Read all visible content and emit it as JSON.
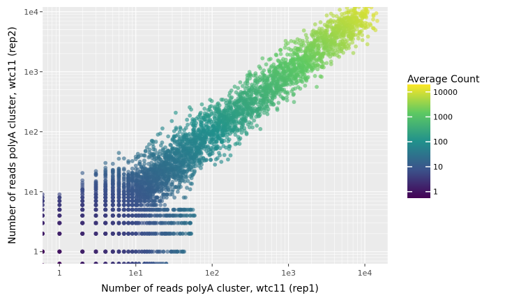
{
  "chart_data": {
    "type": "scatter",
    "xlabel": "Number of reads polyA cluster, wtc11 (rep1)",
    "ylabel": "Number of reads polyA cluster, wtc11 (rep2)",
    "x_scale": "log10",
    "y_scale": "log10",
    "xlim": [
      0.6,
      20000
    ],
    "ylim": [
      0.63,
      12000
    ],
    "x_ticks": [
      {
        "value": 1,
        "label": "1"
      },
      {
        "value": 10,
        "label": "1e1"
      },
      {
        "value": 100,
        "label": "1e2"
      },
      {
        "value": 1000,
        "label": "1e3"
      },
      {
        "value": 10000,
        "label": "1e4"
      }
    ],
    "y_ticks": [
      {
        "value": 1,
        "label": "1"
      },
      {
        "value": 10,
        "label": "1e1"
      },
      {
        "value": 100,
        "label": "1e2"
      },
      {
        "value": 1000,
        "label": "1e3"
      },
      {
        "value": 10000,
        "label": "1e4"
      }
    ],
    "grid": true,
    "color_by": "average count (viridis, log scale)",
    "legend": {
      "title": "Average Count",
      "placement": "right",
      "labels": [
        {
          "value": 1,
          "label": "1"
        },
        {
          "value": 10,
          "label": "10"
        },
        {
          "value": 100,
          "label": "100"
        },
        {
          "value": 1000,
          "label": "1000"
        },
        {
          "value": 10000,
          "label": "10000"
        }
      ],
      "range": [
        0.55,
        20000
      ]
    },
    "points_description_sample": [
      [
        1,
        1
      ],
      [
        2,
        1
      ],
      [
        5,
        2
      ],
      [
        10,
        10
      ],
      [
        30,
        30
      ],
      [
        100,
        100
      ],
      [
        300,
        300
      ],
      [
        1000,
        1000
      ],
      [
        3000,
        3500
      ],
      [
        9000,
        7000
      ],
      [
        13000,
        8500
      ],
      [
        20,
        2
      ],
      [
        10,
        3
      ],
      [
        2,
        8
      ],
      [
        2,
        15
      ]
    ]
  },
  "colors": {
    "panel_bg": "#ebebeb",
    "grid_major": "#ffffff",
    "viridis_stops": [
      "#440154",
      "#3b528b",
      "#21918c",
      "#5ec962",
      "#fde725"
    ]
  }
}
